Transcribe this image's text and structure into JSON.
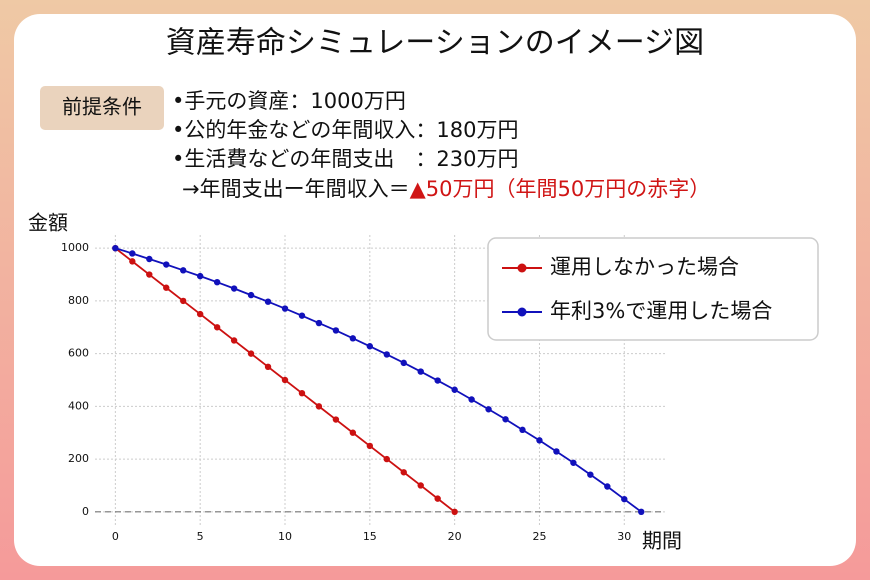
{
  "chart_data": {
    "type": "line",
    "title": "資産寿命シミュレーションのイメージ図",
    "premise_label": "前提条件",
    "premise_lines": [
      "•手元の資産：1000万円",
      "•公的年金などの年間収入：180万円",
      "•生活費などの年間支出　：230万円"
    ],
    "premise_result": "→年間支出ー年間収入＝",
    "premise_result_highlight": "▲50万円（年間50万円の赤字）",
    "y_label": "金額",
    "x_label": "期間",
    "series": [
      {
        "name": "運用しなかった場合",
        "color": "#cc1111",
        "x": [
          0,
          1,
          2,
          3,
          4,
          5,
          6,
          7,
          8,
          9,
          10,
          11,
          12,
          13,
          14,
          15,
          16,
          17,
          18,
          19,
          20
        ],
        "values": [
          1000,
          950,
          900,
          850,
          800,
          750,
          700,
          650,
          600,
          550,
          500,
          450,
          400,
          350,
          300,
          250,
          200,
          150,
          100,
          50,
          0
        ]
      },
      {
        "name": "年利3%で運用した場合",
        "color": "#1111bb",
        "x": [
          0,
          1,
          2,
          3,
          4,
          5,
          6,
          7,
          8,
          9,
          10,
          11,
          12,
          13,
          14,
          15,
          16,
          17,
          18,
          19,
          20,
          21,
          22,
          23,
          24,
          25,
          26,
          27,
          28,
          29,
          30,
          31
        ],
        "values": [
          1000,
          980,
          959,
          938,
          916,
          894,
          871,
          847,
          822,
          797,
          771,
          744,
          716,
          688,
          658,
          628,
          597,
          565,
          532,
          498,
          463,
          426,
          389,
          351,
          311,
          271,
          229,
          186,
          141,
          96,
          48,
          0
        ]
      }
    ],
    "xlim": [
      -1.2,
      32.4
    ],
    "ylim": [
      -50,
      1050
    ],
    "xticks": [
      0,
      5,
      10,
      15,
      20,
      25,
      30
    ],
    "yticks": [
      0,
      200,
      400,
      600,
      800,
      1000
    ],
    "reference_line": 0,
    "grid": true,
    "legend": "upper right"
  }
}
